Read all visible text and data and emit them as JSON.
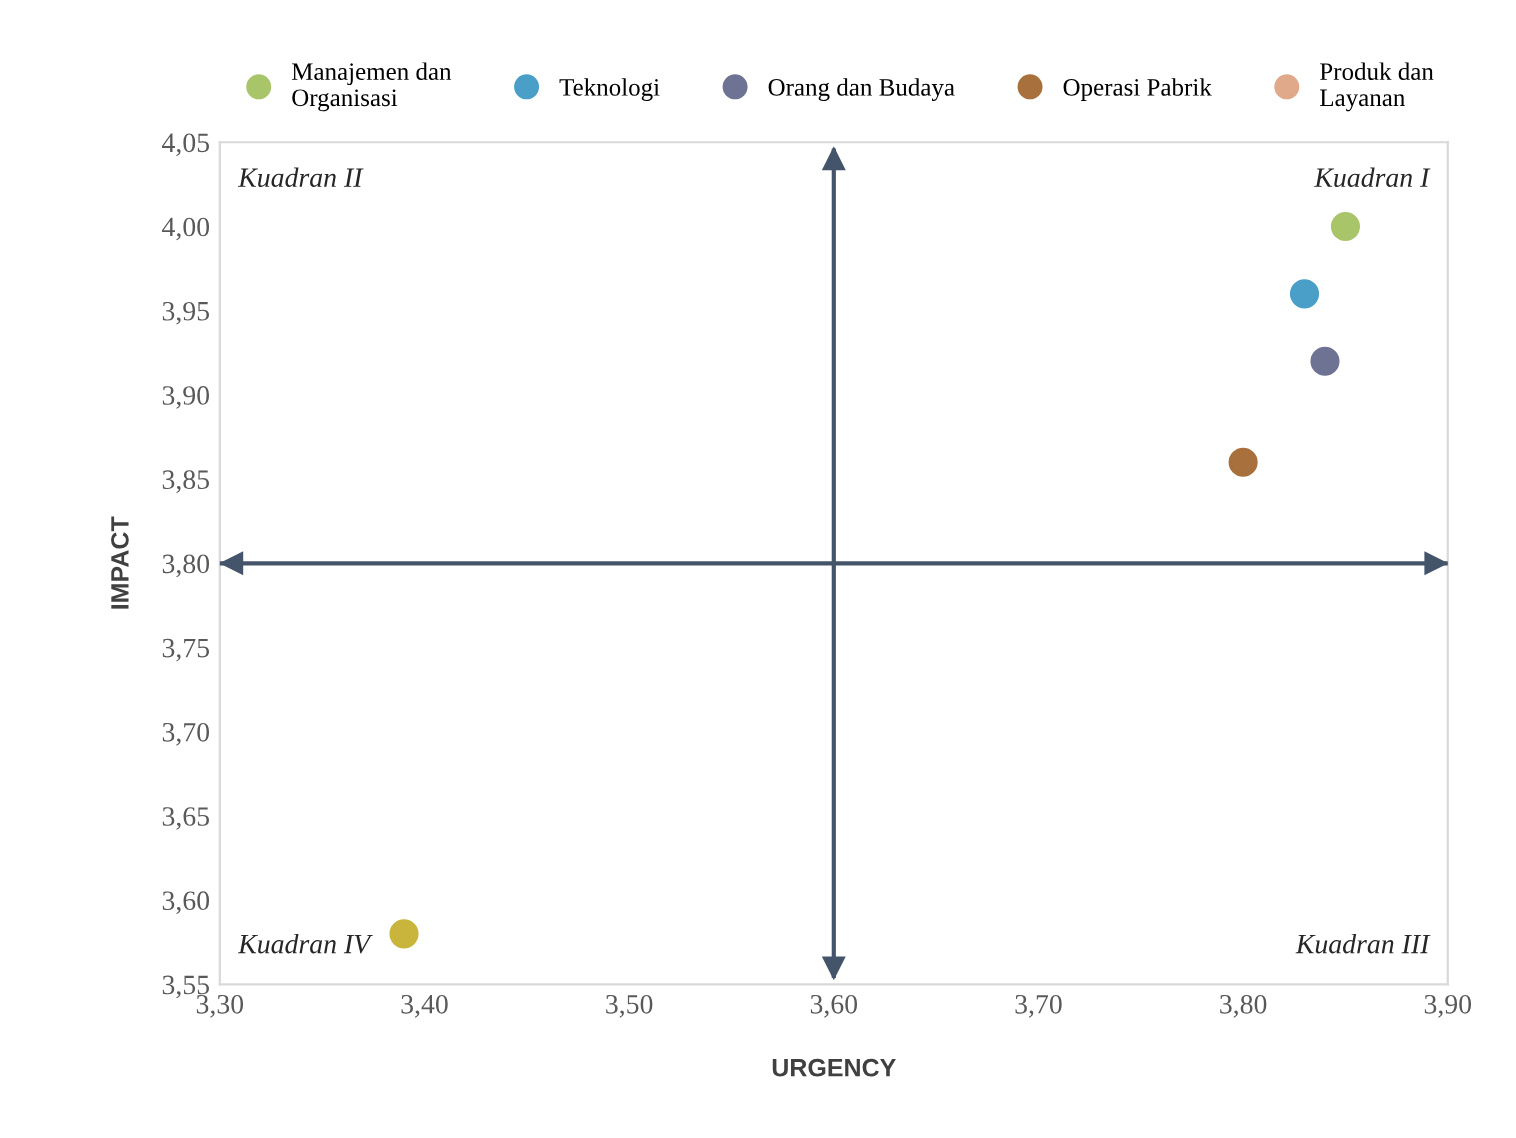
{
  "chart_data": {
    "type": "scatter",
    "xlabel": "URGENCY",
    "ylabel": "IMPACT",
    "series": [
      {
        "name": "Manajemen dan\nOrganisasi",
        "color": "#a9c56a",
        "x": [
          3.85
        ],
        "values": [
          4.0
        ]
      },
      {
        "name": "Teknologi",
        "color": "#4a9fc8",
        "x": [
          3.83
        ],
        "values": [
          3.96
        ]
      },
      {
        "name": "Orang dan Budaya",
        "color": "#6e7394",
        "x": [
          3.84
        ],
        "values": [
          3.92
        ]
      },
      {
        "name": "Operasi Pabrik",
        "color": "#a8703c",
        "x": [
          3.8
        ],
        "values": [
          3.86
        ]
      },
      {
        "name": "Produk dan\nLayanan",
        "color": "#e0a98a",
        "x": [
          null
        ],
        "values": [
          null
        ]
      },
      {
        "color": "#c9b43c",
        "x": [
          3.39
        ],
        "values": [
          3.58
        ]
      }
    ],
    "xlim": [
      3.3,
      3.9
    ],
    "xticks": [
      {
        "value": 3.3,
        "label": "3,30"
      },
      {
        "value": 3.4,
        "label": "3,40"
      },
      {
        "value": 3.5,
        "label": "3,50"
      },
      {
        "value": 3.6,
        "label": "3,60"
      },
      {
        "value": 3.7,
        "label": "3,70"
      },
      {
        "value": 3.8,
        "label": "3,80"
      },
      {
        "value": 3.9,
        "label": "3,90"
      }
    ],
    "ylim": [
      3.55,
      4.05
    ],
    "yticks": [
      {
        "value": 3.55,
        "label": "3,55"
      },
      {
        "value": 3.6,
        "label": "3,60"
      },
      {
        "value": 3.65,
        "label": "3,65"
      },
      {
        "value": 3.7,
        "label": "3,70"
      },
      {
        "value": 3.75,
        "label": "3,75"
      },
      {
        "value": 3.8,
        "label": "3,80"
      },
      {
        "value": 3.85,
        "label": "3,85"
      },
      {
        "value": 3.9,
        "label": "3,90"
      },
      {
        "value": 3.95,
        "label": "3,95"
      },
      {
        "value": 4.0,
        "label": "4,00"
      },
      {
        "value": 4.05,
        "label": "4,05"
      }
    ],
    "ref_lines": [
      {
        "axis": "x",
        "value": 3.6,
        "color": "#44546a"
      },
      {
        "axis": "y",
        "value": 3.8,
        "color": "#44546a"
      }
    ],
    "annotations": [
      "Kuadran II",
      "Kuadran I",
      "Kuadran IV",
      "Kuadran III"
    ],
    "marker": "circle",
    "grid": false,
    "legend": "top"
  }
}
